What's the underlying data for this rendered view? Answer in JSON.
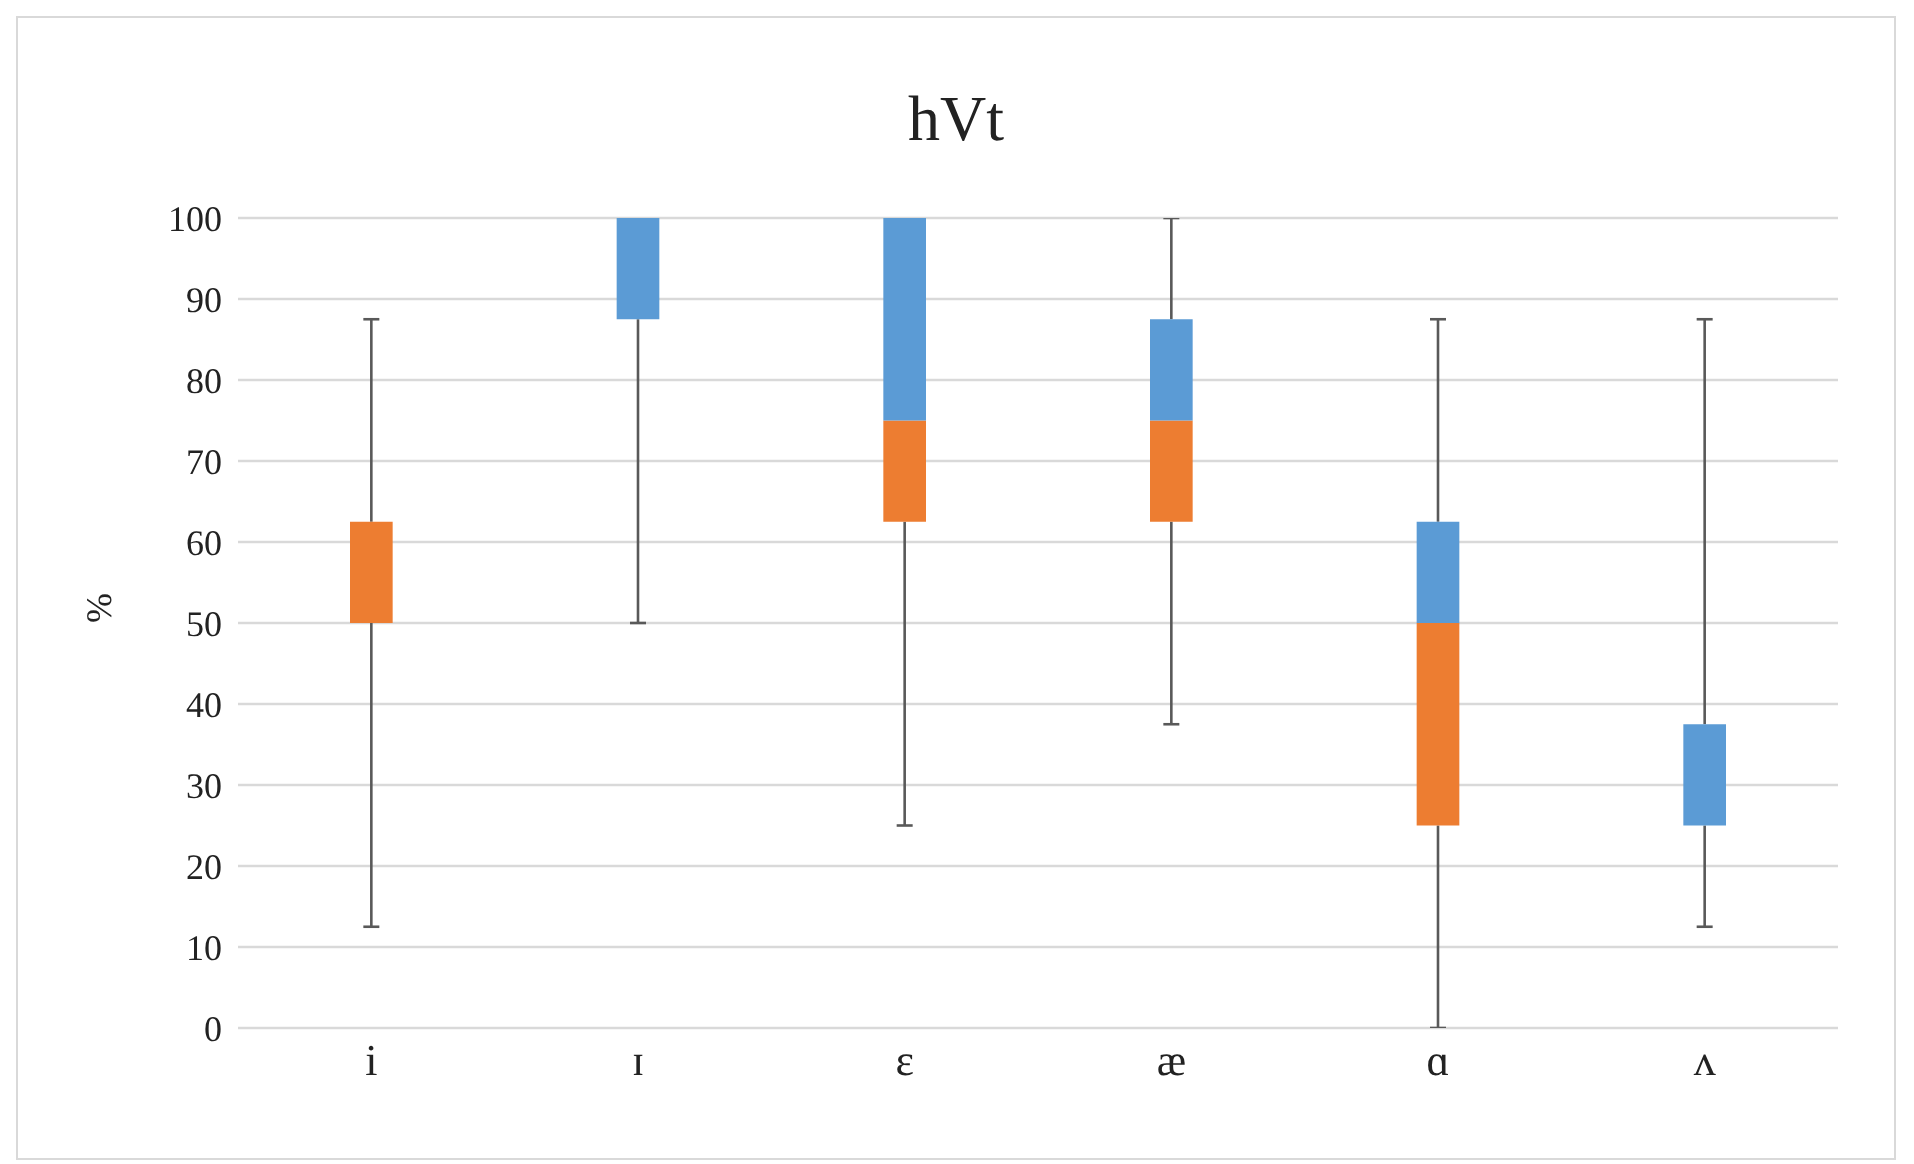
{
  "chart_data": {
    "type": "box",
    "title": "hVt",
    "ylabel": "%",
    "categories": [
      "i",
      "ɪ",
      "ɛ",
      "æ",
      "ɑ",
      "ʌ"
    ],
    "boxes": [
      {
        "low": 12.5,
        "q1": 50,
        "median": 62.5,
        "q3": 62.5,
        "high": 87.5
      },
      {
        "low": 50,
        "q1": 87.5,
        "median": 87.5,
        "q3": 100,
        "high": 100
      },
      {
        "low": 25,
        "q1": 62.5,
        "median": 75,
        "q3": 100,
        "high": 100
      },
      {
        "low": 37.5,
        "q1": 62.5,
        "median": 75,
        "q3": 87.5,
        "high": 100
      },
      {
        "low": 0,
        "q1": 25,
        "median": 50,
        "q3": 62.5,
        "high": 87.5
      },
      {
        "low": 12.5,
        "q1": 25,
        "median": 25,
        "q3": 37.5,
        "high": 87.5
      }
    ],
    "colors": [
      [
        "#ed7d31",
        "#5b9bd5"
      ],
      [
        "#ed7d31",
        "#5b9bd5"
      ],
      [
        "#ed7d31",
        "#5b9bd5"
      ],
      [
        "#ed7d31",
        "#5b9bd5"
      ],
      [
        "#ed7d31",
        "#5b9bd5"
      ],
      [
        "#ed7d31",
        "#5b9bd5"
      ]
    ],
    "ylim": [
      0,
      100
    ],
    "yticks": [
      0,
      10,
      20,
      30,
      40,
      50,
      60,
      70,
      80,
      90,
      100
    ],
    "grid": "y",
    "legend": false
  }
}
